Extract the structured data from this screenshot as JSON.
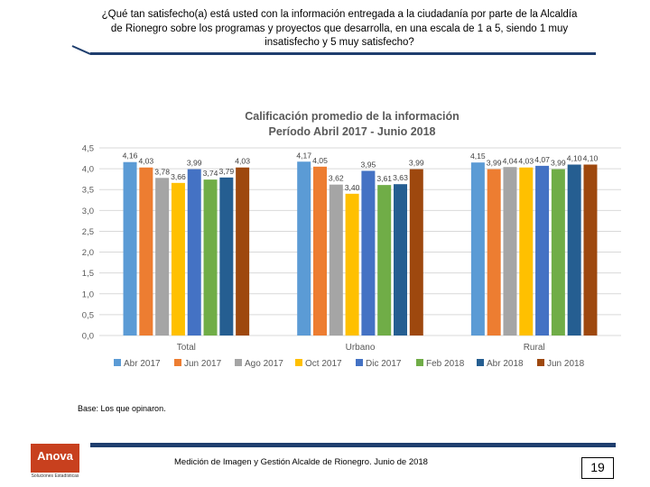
{
  "question": "¿Qué tan satisfecho(a) está usted con la información entregada a la ciudadanía por parte de la Alcaldía de Rionegro sobre los programas y proyectos que desarrolla, en una escala de 1 a 5, siendo 1 muy insatisfecho y 5 muy satisfecho?",
  "base_note": "Base: Los que opinaron.",
  "footer": {
    "text": "Medición de Imagen y Gestión Alcalde de Rionegro. Junio de 2018",
    "page_number": "19",
    "logo_text": "Anova",
    "logo_subtext": "Soluciones Estadísticas"
  },
  "colors": {
    "header_line": "#1f3e6e",
    "grid": "#d9d9d9",
    "axis_text": "#595959",
    "title_text": "#595959"
  },
  "chart_data": {
    "type": "bar",
    "title": "Calificación promedio de la información",
    "subtitle": "Período Abril 2017 - Junio 2018",
    "categories": [
      "Total",
      "Urbano",
      "Rural"
    ],
    "ylim": [
      0,
      4.5
    ],
    "yticks": [
      "0,0",
      "0,5",
      "1,0",
      "1,5",
      "2,0",
      "2,5",
      "3,0",
      "3,5",
      "4,0",
      "4,5"
    ],
    "legend_position": "bottom",
    "grid": true,
    "series": [
      {
        "name": "Abr 2017",
        "color": "#5b9bd5",
        "values": [
          4.16,
          4.17,
          4.15
        ],
        "labels": [
          "4,16",
          "4,17",
          "4,15"
        ]
      },
      {
        "name": "Jun 2017",
        "color": "#ed7d31",
        "values": [
          4.03,
          4.05,
          3.99
        ],
        "labels": [
          "4,03",
          "4,05",
          "3,99"
        ]
      },
      {
        "name": "Ago 2017",
        "color": "#a5a5a5",
        "values": [
          3.78,
          3.62,
          4.04
        ],
        "labels": [
          "3,78",
          "3,62",
          "4,04"
        ]
      },
      {
        "name": "Oct 2017",
        "color": "#ffc000",
        "values": [
          3.66,
          3.4,
          4.03
        ],
        "labels": [
          "3,66",
          "3,40",
          "4,03"
        ]
      },
      {
        "name": "Dic 2017",
        "color": "#4472c4",
        "values": [
          3.99,
          3.95,
          4.07
        ],
        "labels": [
          "3,99",
          "3,95",
          "4,07"
        ]
      },
      {
        "name": "Feb 2018",
        "color": "#70ad47",
        "values": [
          3.74,
          3.61,
          3.99
        ],
        "labels": [
          "3,74",
          "3,61",
          "3,99"
        ]
      },
      {
        "name": "Abr 2018",
        "color": "#255e91",
        "values": [
          3.79,
          3.63,
          4.1
        ],
        "labels": [
          "3,79",
          "3,63",
          "4,10"
        ]
      },
      {
        "name": "Jun 2018",
        "color": "#9e480e",
        "values": [
          4.03,
          3.99,
          4.1
        ],
        "labels": [
          "4,03",
          "3,99",
          "4,10"
        ]
      }
    ]
  }
}
